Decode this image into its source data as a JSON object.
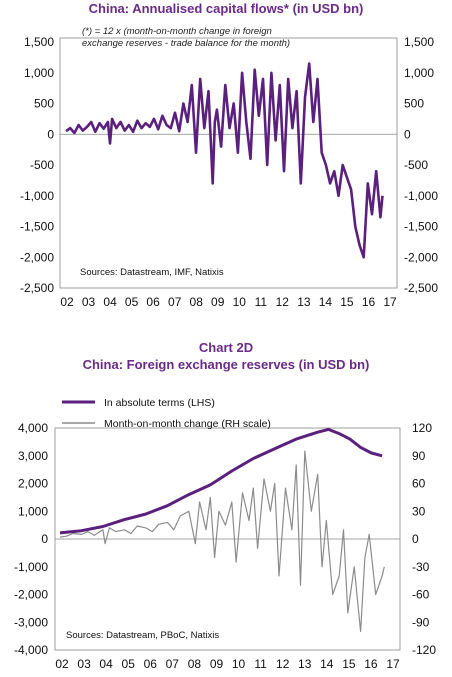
{
  "chart_data": [
    {
      "type": "line",
      "title": "China: Annualised capital flows* (in USD bn)",
      "subtitle": "",
      "note_line1": "(*) = 12 x (month-on-month change in foreign",
      "note_line2": "exchange reserves - trade balance for the month)",
      "source": "Sources: Datastream, IMF, Natixis",
      "x_tick_labels": [
        "02",
        "03",
        "04",
        "05",
        "06",
        "07",
        "08",
        "09",
        "10",
        "11",
        "12",
        "13",
        "14",
        "15",
        "16",
        "17"
      ],
      "y_tick_labels_left": [
        "1,500",
        "1,000",
        "500",
        "0",
        "-500",
        "-1,000",
        "-1,500",
        "-2,000",
        "-2,500"
      ],
      "y_tick_labels_right": [
        "1,500",
        "1,000",
        "500",
        "0",
        "-500",
        "-1,000",
        "-1,500",
        "-2,000",
        "-2,500"
      ],
      "ylim": [
        -2500,
        1500
      ],
      "xlim": [
        2002,
        2017.6
      ],
      "color": "#5b1f7e",
      "series": [
        {
          "name": "",
          "x": [
            2002.0,
            2002.2,
            2002.4,
            2002.6,
            2002.8,
            2003.0,
            2003.2,
            2003.4,
            2003.6,
            2003.8,
            2004.0,
            2004.1,
            2004.2,
            2004.4,
            2004.6,
            2004.8,
            2005.0,
            2005.2,
            2005.4,
            2005.6,
            2005.8,
            2006.0,
            2006.2,
            2006.4,
            2006.6,
            2006.8,
            2007.0,
            2007.2,
            2007.4,
            2007.6,
            2007.8,
            2008.0,
            2008.2,
            2008.4,
            2008.6,
            2008.8,
            2009.0,
            2009.1,
            2009.2,
            2009.4,
            2009.6,
            2009.8,
            2010.0,
            2010.2,
            2010.4,
            2010.6,
            2010.8,
            2011.0,
            2011.2,
            2011.4,
            2011.6,
            2011.8,
            2012.0,
            2012.2,
            2012.4,
            2012.6,
            2012.8,
            2013.0,
            2013.2,
            2013.4,
            2013.6,
            2013.8,
            2014.0,
            2014.2,
            2014.4,
            2014.6,
            2014.8,
            2015.0,
            2015.2,
            2015.4,
            2015.6,
            2015.8,
            2016.0,
            2016.2,
            2016.4,
            2016.6,
            2016.8,
            2017.0,
            2017.1
          ],
          "y": [
            50,
            100,
            20,
            150,
            60,
            120,
            200,
            40,
            180,
            90,
            200,
            -150,
            250,
            100,
            200,
            60,
            150,
            40,
            220,
            100,
            180,
            120,
            250,
            80,
            300,
            150,
            100,
            350,
            50,
            500,
            200,
            800,
            -300,
            900,
            100,
            700,
            -800,
            200,
            400,
            -200,
            800,
            100,
            500,
            -300,
            1000,
            200,
            -400,
            1050,
            300,
            900,
            -500,
            1000,
            -100,
            800,
            -600,
            900,
            100,
            700,
            -800,
            600,
            1150,
            200,
            900,
            -300,
            -500,
            -800,
            -600,
            -1000,
            -500,
            -700,
            -900,
            -1500,
            -1800,
            -2000,
            -800,
            -1300,
            -600,
            -1350,
            -1000
          ]
        }
      ]
    },
    {
      "type": "line",
      "title_line1": "Chart 2D",
      "title_line2": "China: Foreign exchange reserves (in USD bn)",
      "source": "Sources: Datastream, PBoC, Natixis",
      "x_tick_labels": [
        "02",
        "03",
        "04",
        "05",
        "06",
        "07",
        "08",
        "09",
        "10",
        "11",
        "12",
        "13",
        "14",
        "15",
        "16",
        "17"
      ],
      "y_tick_labels_left": [
        "4,000",
        "3,000",
        "2,000",
        "1,000",
        "0",
        "-1,000",
        "-2,000",
        "-3,000",
        "-4,000"
      ],
      "y_tick_labels_right": [
        "120",
        "90",
        "60",
        "30",
        "0",
        "-30",
        "-60",
        "-90",
        "-120"
      ],
      "ylim_left": [
        -4000,
        4000
      ],
      "ylim_right": [
        -120,
        120
      ],
      "xlim": [
        2002,
        2017.6
      ],
      "series": [
        {
          "name": "In absolute terms (LHS)",
          "axis": "left",
          "color": "#5b1f7e",
          "x": [
            2002.0,
            2003.0,
            2004.0,
            2005.0,
            2006.0,
            2007.0,
            2008.0,
            2009.0,
            2010.0,
            2011.0,
            2012.0,
            2013.0,
            2014.0,
            2014.5,
            2015.0,
            2015.5,
            2016.0,
            2016.5,
            2017.0
          ],
          "y": [
            220,
            300,
            450,
            700,
            900,
            1200,
            1600,
            1950,
            2450,
            2900,
            3250,
            3600,
            3850,
            3950,
            3800,
            3600,
            3300,
            3100,
            3000
          ]
        },
        {
          "name": "Month-on-month change (RH scale)",
          "axis": "right",
          "color": "#8c8c8c",
          "x": [
            2002.0,
            2002.3,
            2002.6,
            2003.0,
            2003.3,
            2003.6,
            2004.0,
            2004.1,
            2004.3,
            2004.6,
            2005.0,
            2005.3,
            2005.6,
            2006.0,
            2006.3,
            2006.6,
            2007.0,
            2007.3,
            2007.6,
            2008.0,
            2008.3,
            2008.5,
            2008.8,
            2009.0,
            2009.2,
            2009.4,
            2009.7,
            2010.0,
            2010.2,
            2010.5,
            2010.8,
            2011.0,
            2011.2,
            2011.5,
            2011.8,
            2012.0,
            2012.2,
            2012.5,
            2012.8,
            2013.0,
            2013.2,
            2013.4,
            2013.7,
            2014.0,
            2014.2,
            2014.4,
            2014.7,
            2015.0,
            2015.2,
            2015.4,
            2015.7,
            2016.0,
            2016.2,
            2016.4,
            2016.7,
            2017.0,
            2017.1
          ],
          "y": [
            2,
            3,
            6,
            5,
            8,
            4,
            10,
            -5,
            12,
            8,
            10,
            6,
            14,
            12,
            8,
            16,
            18,
            10,
            25,
            30,
            -5,
            40,
            10,
            45,
            -20,
            30,
            15,
            40,
            -25,
            50,
            20,
            55,
            -10,
            65,
            30,
            60,
            -40,
            55,
            10,
            80,
            -50,
            95,
            30,
            70,
            -30,
            20,
            -60,
            -40,
            10,
            -80,
            -30,
            -100,
            -20,
            5,
            -60,
            -40,
            -30
          ]
        }
      ]
    }
  ]
}
